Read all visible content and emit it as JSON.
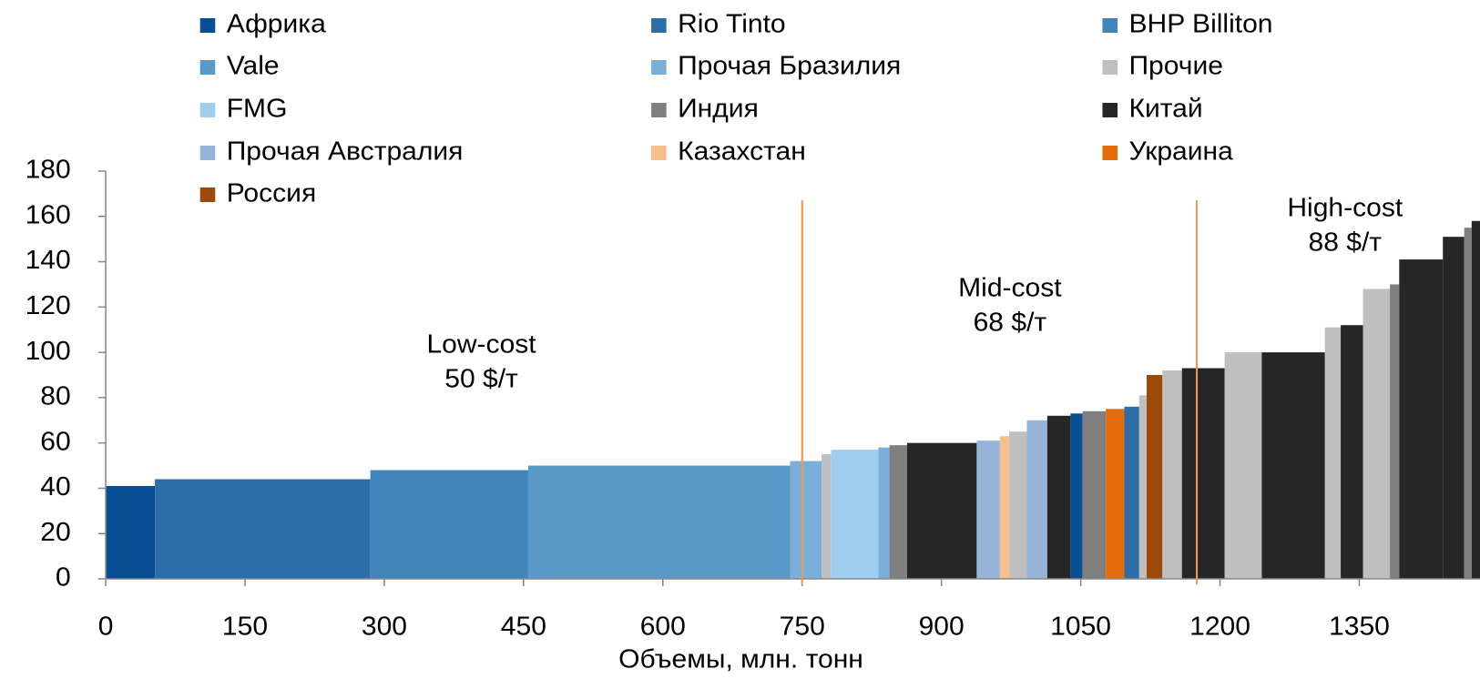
{
  "chart_data": {
    "type": "cost_curve",
    "xlabel": "Объемы, млн. тонн",
    "xlim": [
      0,
      1480
    ],
    "xticks": [
      0,
      150,
      300,
      450,
      600,
      750,
      900,
      1050,
      1200,
      1350
    ],
    "ylim": [
      0,
      180
    ],
    "yticks": [
      0,
      20,
      40,
      60,
      80,
      100,
      120,
      140,
      160,
      180
    ],
    "series": [
      {
        "name": "Африка",
        "color": "#074f92"
      },
      {
        "name": "Rio Tinto",
        "color": "#2c6fa8"
      },
      {
        "name": "BHP Billiton",
        "color": "#4185bb"
      },
      {
        "name": "Vale",
        "color": "#5b9ac8"
      },
      {
        "name": "Прочая Бразилия",
        "color": "#7aafda"
      },
      {
        "name": "Прочие",
        "color": "#bfbfbf"
      },
      {
        "name": "FMG",
        "color": "#9fcdf0"
      },
      {
        "name": "Индия",
        "color": "#7f7f7f"
      },
      {
        "name": "Китай",
        "color": "#262626"
      },
      {
        "name": "Прочая Австралия",
        "color": "#97b3d8"
      },
      {
        "name": "Казахстан",
        "color": "#f6c08e"
      },
      {
        "name": "Украина",
        "color": "#e46c0a"
      },
      {
        "name": "Россия",
        "color": "#9c4a0a"
      }
    ],
    "bars": [
      {
        "series": 0,
        "x": [
          0,
          53
        ],
        "value": 41
      },
      {
        "series": 1,
        "x": [
          53,
          285
        ],
        "value": 44
      },
      {
        "series": 2,
        "x": [
          285,
          455
        ],
        "value": 48
      },
      {
        "series": 3,
        "x": [
          455,
          737
        ],
        "value": 50
      },
      {
        "series": 4,
        "x": [
          737,
          771
        ],
        "value": 52
      },
      {
        "series": 5,
        "x": [
          771,
          781
        ],
        "value": 55
      },
      {
        "series": 6,
        "x": [
          781,
          832
        ],
        "value": 57
      },
      {
        "series": 4,
        "x": [
          832,
          844
        ],
        "value": 58
      },
      {
        "series": 7,
        "x": [
          844,
          863
        ],
        "value": 59
      },
      {
        "series": 8,
        "x": [
          863,
          938
        ],
        "value": 60
      },
      {
        "series": 9,
        "x": [
          938,
          963
        ],
        "value": 61
      },
      {
        "series": 10,
        "x": [
          963,
          973
        ],
        "value": 63
      },
      {
        "series": 5,
        "x": [
          973,
          992
        ],
        "value": 65
      },
      {
        "series": 9,
        "x": [
          992,
          1014
        ],
        "value": 70
      },
      {
        "series": 8,
        "x": [
          1014,
          1039
        ],
        "value": 72
      },
      {
        "series": 0,
        "x": [
          1039,
          1052
        ],
        "value": 73
      },
      {
        "series": 7,
        "x": [
          1052,
          1077
        ],
        "value": 74
      },
      {
        "series": 11,
        "x": [
          1077,
          1097
        ],
        "value": 75
      },
      {
        "series": 1,
        "x": [
          1097,
          1113
        ],
        "value": 76
      },
      {
        "series": 5,
        "x": [
          1113,
          1121
        ],
        "value": 81
      },
      {
        "series": 12,
        "x": [
          1121,
          1138
        ],
        "value": 90
      },
      {
        "series": 5,
        "x": [
          1138,
          1159
        ],
        "value": 92
      },
      {
        "series": 8,
        "x": [
          1159,
          1205
        ],
        "value": 93
      },
      {
        "series": 5,
        "x": [
          1205,
          1245
        ],
        "value": 100
      },
      {
        "series": 8,
        "x": [
          1245,
          1313
        ],
        "value": 100
      },
      {
        "series": 5,
        "x": [
          1313,
          1330
        ],
        "value": 111
      },
      {
        "series": 8,
        "x": [
          1330,
          1354
        ],
        "value": 112
      },
      {
        "series": 5,
        "x": [
          1354,
          1383
        ],
        "value": 128
      },
      {
        "series": 7,
        "x": [
          1383,
          1393
        ],
        "value": 130
      },
      {
        "series": 8,
        "x": [
          1393,
          1440
        ],
        "value": 141
      },
      {
        "series": 8,
        "x": [
          1440,
          1463
        ],
        "value": 151
      },
      {
        "series": 7,
        "x": [
          1463,
          1471
        ],
        "value": 155
      },
      {
        "series": 8,
        "x": [
          1471,
          1480
        ],
        "value": 158
      }
    ],
    "vlines": [
      750,
      1175
    ],
    "vline_color": "#f79646",
    "annotations": [
      {
        "lines": [
          "Low-cost",
          "50 $/т"
        ]
      },
      {
        "lines": [
          "Mid-cost",
          "68 $/т"
        ]
      },
      {
        "lines": [
          "High-cost",
          "88 $/т"
        ]
      }
    ]
  }
}
